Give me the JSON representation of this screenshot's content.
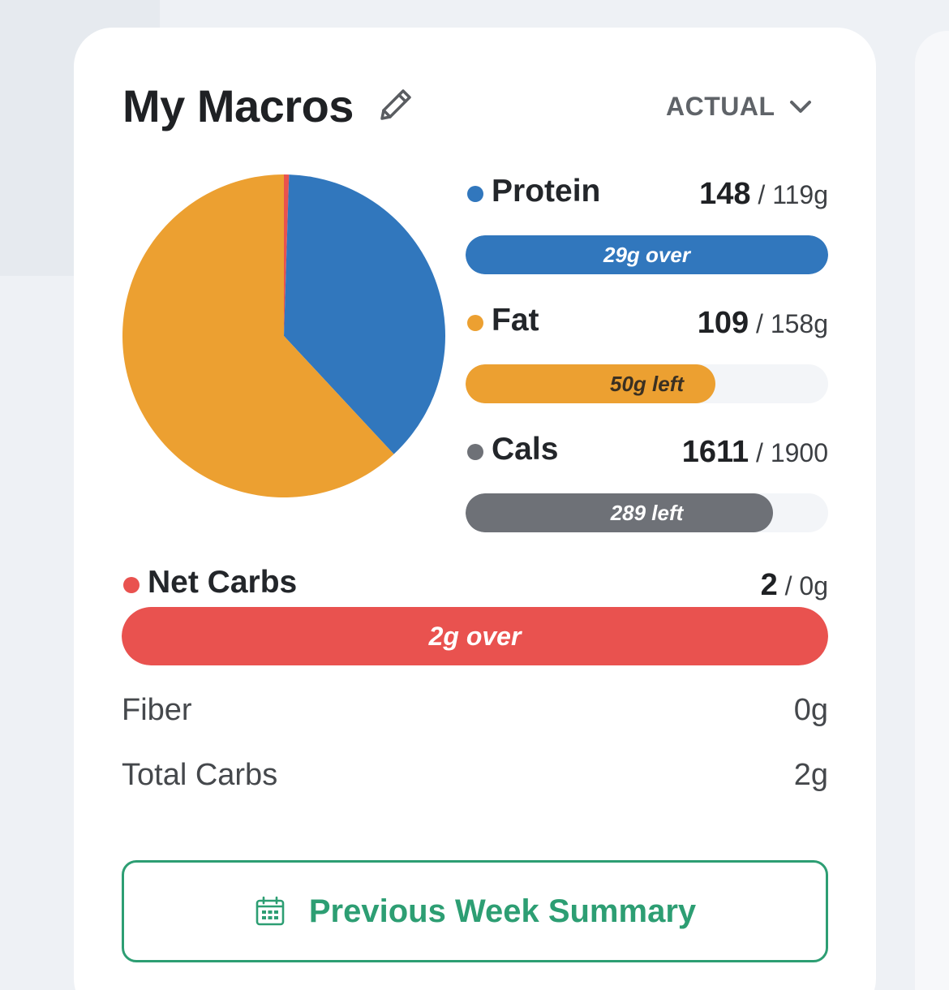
{
  "card": {
    "title": "My Macros",
    "edit_icon": "pencil-icon",
    "view_select": {
      "label": "ACTUAL",
      "icon": "chevron-down-icon"
    }
  },
  "chart_data": {
    "type": "pie",
    "slices": [
      {
        "name": "Net Carbs",
        "value": 2,
        "color": "#e9524f"
      },
      {
        "name": "Protein",
        "value": 148,
        "color": "#3177bd"
      },
      {
        "name": "Fat",
        "value": 244,
        "color": "#eca031"
      }
    ]
  },
  "macros": [
    {
      "key": "protein",
      "name": "Protein",
      "current": "148",
      "goal": "119g",
      "fraction": 1.0,
      "bar_label": "29g over",
      "color": "#3177bd"
    },
    {
      "key": "fat",
      "name": "Fat",
      "current": "109",
      "goal": "158g",
      "fraction": 0.69,
      "bar_label": "50g left",
      "color": "#eca031",
      "label_color": "#3a3022"
    },
    {
      "key": "cals",
      "name": "Cals",
      "current": "1611",
      "goal": "1900",
      "fraction": 0.848,
      "bar_label": "289 left",
      "color": "#6e7177"
    }
  ],
  "net_carbs": {
    "name": "Net Carbs",
    "current": "2",
    "goal": "0g",
    "fraction": 1.0,
    "bar_label": "2g over",
    "color": "#e9524f"
  },
  "details": [
    {
      "label": "Fiber",
      "value": "0g"
    },
    {
      "label": "Total Carbs",
      "value": "2g"
    }
  ],
  "previous_week": {
    "label": "Previous Week Summary",
    "icon": "calendar-icon",
    "color": "#2d9e73"
  }
}
